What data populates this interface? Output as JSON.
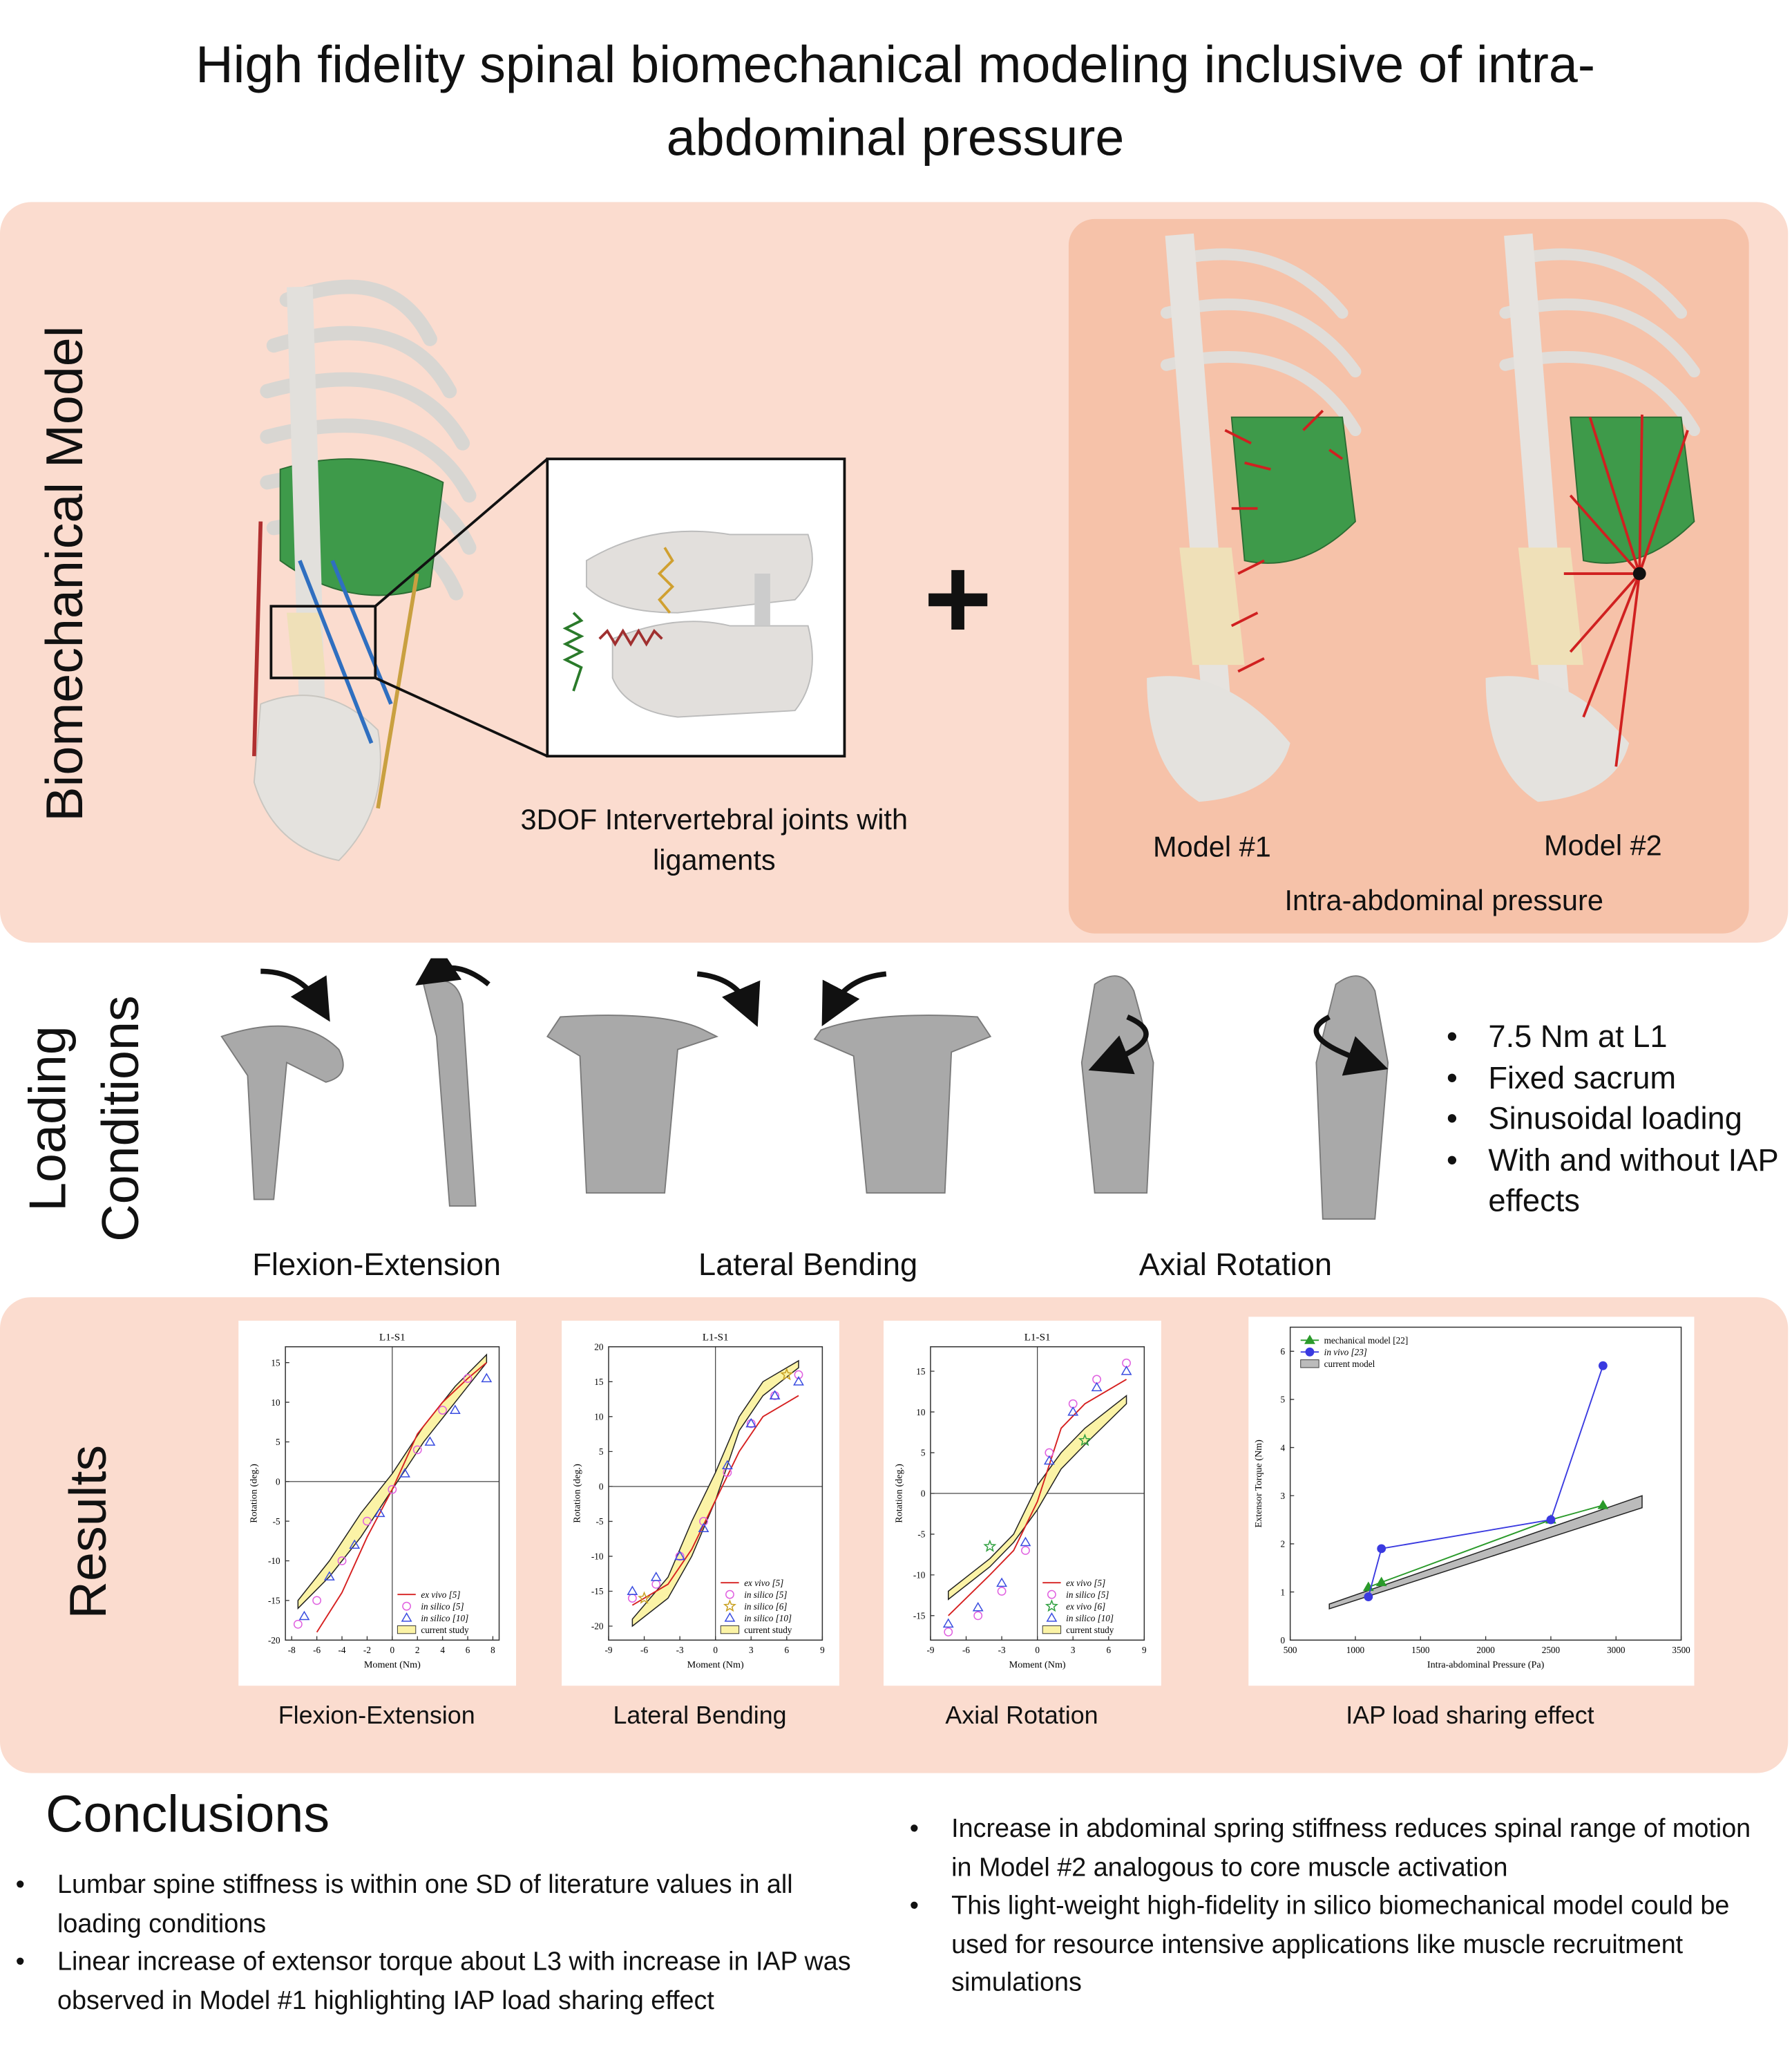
{
  "title": "High fidelity spinal biomechanical modeling inclusive of intra-abdominal pressure",
  "model_section": {
    "label": "Biomechanical Model",
    "joint_caption": "3DOF Intervertebral joints with ligaments",
    "plus": "+",
    "model1": "Model #1",
    "model2": "Model #2",
    "iap_caption": "Intra-abdominal pressure"
  },
  "loading_section": {
    "label": "Loading Conditions",
    "captions": [
      "Flexion-Extension",
      "Lateral Bending",
      "Axial Rotation"
    ],
    "bullets": [
      "7.5 Nm at L1",
      "Fixed sacrum",
      "Sinusoidal loading",
      "With and without IAP effects"
    ]
  },
  "results_section": {
    "label": "Results",
    "captions": [
      "Flexion-Extension",
      "Lateral Bending",
      "Axial Rotation",
      "IAP load sharing effect"
    ]
  },
  "conclusions": {
    "heading": "Conclusions",
    "left": [
      "Lumbar spine stiffness is within one SD of literature values in all loading conditions",
      "Linear increase of extensor torque about L3 with increase in IAP was observed in Model #1 highlighting IAP load sharing effect"
    ],
    "right": [
      "Increase in abdominal spring stiffness reduces spinal range of motion in Model #2 analogous to core muscle activation",
      "This light-weight high-fidelity in silico biomechanical model could be used for resource intensive applications like muscle recruitment simulations"
    ]
  },
  "chart_data": [
    {
      "type": "line",
      "title": "L1-S1",
      "xlabel": "Moment (Nm)",
      "ylabel": "Rotation (deg.)",
      "xlim": [
        -8.5,
        8.5
      ],
      "ylim": [
        -20,
        17
      ],
      "xticks": [
        -8,
        -6,
        -4,
        -2,
        0,
        2,
        4,
        6,
        8
      ],
      "yticks": [
        -20,
        -15,
        -10,
        -5,
        0,
        5,
        10,
        15
      ],
      "origin_lines": true,
      "legend": "lower right",
      "series": [
        {
          "name": "ex vivo [5]",
          "color": "#d62020",
          "line": true,
          "marker": "none",
          "x": [
            -6,
            -4,
            -2,
            0,
            2,
            4,
            6,
            7.5
          ],
          "values": [
            -19,
            -14,
            -7,
            -1,
            6,
            10,
            13,
            15
          ]
        },
        {
          "name": "in silico [5]",
          "color": "#e060e0",
          "line": false,
          "marker": "circle",
          "x": [
            -7.5,
            -6,
            -4,
            -2,
            0,
            2,
            4,
            6
          ],
          "values": [
            -18,
            -15,
            -10,
            -5,
            -1,
            4,
            9,
            13
          ]
        },
        {
          "name": "in silico [10]",
          "color": "#3a4de0",
          "line": false,
          "marker": "triangle",
          "x": [
            -7,
            -5,
            -3,
            -1,
            1,
            3,
            5,
            7.5
          ],
          "values": [
            -17,
            -12,
            -8,
            -4,
            1,
            5,
            9,
            13
          ]
        },
        {
          "name": "current study",
          "color": "#fbf3a6",
          "x": [
            -7.5,
            -5,
            -2.5,
            0,
            2.5,
            5,
            7.5
          ],
          "lower": [
            -16,
            -12,
            -7,
            -1,
            5,
            10,
            15
          ],
          "upper": [
            -15,
            -10,
            -4,
            1,
            7,
            12,
            16
          ]
        }
      ]
    },
    {
      "type": "line",
      "title": "L1-S1",
      "xlabel": "Moment (Nm)",
      "ylabel": "Rotation (deg.)",
      "xlim": [
        -9,
        9
      ],
      "ylim": [
        -22,
        20
      ],
      "xticks": [
        -9,
        -6,
        -3,
        0,
        3,
        6,
        9
      ],
      "yticks": [
        -20,
        -15,
        -10,
        -5,
        0,
        5,
        10,
        15,
        20
      ],
      "origin_lines": true,
      "legend": "lower right",
      "series": [
        {
          "name": "ex vivo [5]",
          "color": "#d62020",
          "line": true,
          "marker": "none",
          "x": [
            -7,
            -4,
            -2,
            0,
            2,
            4,
            7
          ],
          "values": [
            -17,
            -14,
            -9,
            -2,
            5,
            10,
            13
          ]
        },
        {
          "name": "in silico [5]",
          "color": "#e060e0",
          "line": false,
          "marker": "circle",
          "x": [
            -7,
            -5,
            -3,
            -1,
            1,
            3,
            5,
            7
          ],
          "values": [
            -16,
            -14,
            -10,
            -5,
            2,
            9,
            13,
            16
          ]
        },
        {
          "name": "in silico [6]",
          "color": "#c8a020",
          "line": false,
          "marker": "star",
          "x": [
            -6,
            6
          ],
          "values": [
            -16,
            16
          ]
        },
        {
          "name": "in silico [10]",
          "color": "#3a4de0",
          "line": false,
          "marker": "triangle",
          "x": [
            -7,
            -5,
            -3,
            -1,
            1,
            3,
            5,
            7
          ],
          "values": [
            -15,
            -13,
            -10,
            -6,
            3,
            9,
            13,
            15
          ]
        },
        {
          "name": "current study",
          "color": "#fbf3a6",
          "x": [
            -7,
            -4,
            -2,
            0,
            2,
            4,
            7
          ],
          "lower": [
            -20,
            -16,
            -10,
            -2,
            8,
            13,
            17
          ],
          "upper": [
            -19,
            -13,
            -5,
            2,
            10,
            15,
            18
          ]
        }
      ]
    },
    {
      "type": "line",
      "title": "L1-S1",
      "xlabel": "Moment (Nm)",
      "ylabel": "Rotation (deg.)",
      "xlim": [
        -9,
        9
      ],
      "ylim": [
        -18,
        18
      ],
      "xticks": [
        -9,
        -6,
        -3,
        0,
        3,
        6,
        9
      ],
      "yticks": [
        -15,
        -10,
        -5,
        0,
        5,
        10,
        15
      ],
      "origin_lines": true,
      "legend": "lower right",
      "series": [
        {
          "name": "ex vivo [5]",
          "color": "#d62020",
          "line": true,
          "marker": "none",
          "x": [
            -7.5,
            -4,
            -2,
            0,
            2,
            4,
            7.5
          ],
          "values": [
            -15,
            -10,
            -7,
            -1,
            8,
            11,
            14
          ]
        },
        {
          "name": "in silico [5]",
          "color": "#e060e0",
          "line": false,
          "marker": "circle",
          "x": [
            -7.5,
            -5,
            -3,
            -1,
            1,
            3,
            5,
            7.5
          ],
          "values": [
            -17,
            -15,
            -12,
            -7,
            5,
            11,
            14,
            16
          ]
        },
        {
          "name": "ex vivo [6]",
          "color": "#30a040",
          "line": false,
          "marker": "star",
          "x": [
            -4,
            4
          ],
          "values": [
            -6.5,
            6.5
          ]
        },
        {
          "name": "in silico [10]",
          "color": "#3a4de0",
          "line": false,
          "marker": "triangle",
          "x": [
            -7.5,
            -5,
            -3,
            -1,
            1,
            3,
            5,
            7.5
          ],
          "values": [
            -16,
            -14,
            -11,
            -6,
            4,
            10,
            13,
            15
          ]
        },
        {
          "name": "current study",
          "color": "#fbf3a6",
          "x": [
            -7.5,
            -4,
            -2,
            0,
            2,
            4,
            7.5
          ],
          "lower": [
            -13,
            -9,
            -6,
            -2,
            3,
            6,
            11
          ],
          "upper": [
            -12,
            -8,
            -5,
            1,
            5,
            8,
            12
          ]
        }
      ]
    },
    {
      "type": "line",
      "xlabel": "Intra-abdominal Pressure (Pa)",
      "ylabel": "Extensor Torque (Nm)",
      "xlim": [
        500,
        3500
      ],
      "ylim": [
        0,
        6.5
      ],
      "xticks": [
        500,
        1000,
        1500,
        2000,
        2500,
        3000,
        3500
      ],
      "yticks": [
        0,
        1,
        2,
        3,
        4,
        5,
        6
      ],
      "origin_lines": false,
      "legend": "upper left",
      "series": [
        {
          "name": "mechanical model [22]",
          "color": "#2a9a2a",
          "line": true,
          "marker": "filled-triangle",
          "x": [
            1100,
            1200,
            2500,
            2900
          ],
          "values": [
            1.1,
            1.2,
            2.5,
            2.8
          ]
        },
        {
          "name": "in vivo [23]",
          "color": "#3a3ae0",
          "line": true,
          "marker": "filled-circle",
          "x": [
            1100,
            1200,
            2500,
            2900
          ],
          "values": [
            0.9,
            1.9,
            2.5,
            5.7
          ]
        },
        {
          "name": "current model",
          "color": "#bbbbbb",
          "x": [
            800,
            3200
          ],
          "lower": [
            0.65,
            2.75
          ],
          "upper": [
            0.75,
            3.0
          ]
        }
      ]
    }
  ]
}
